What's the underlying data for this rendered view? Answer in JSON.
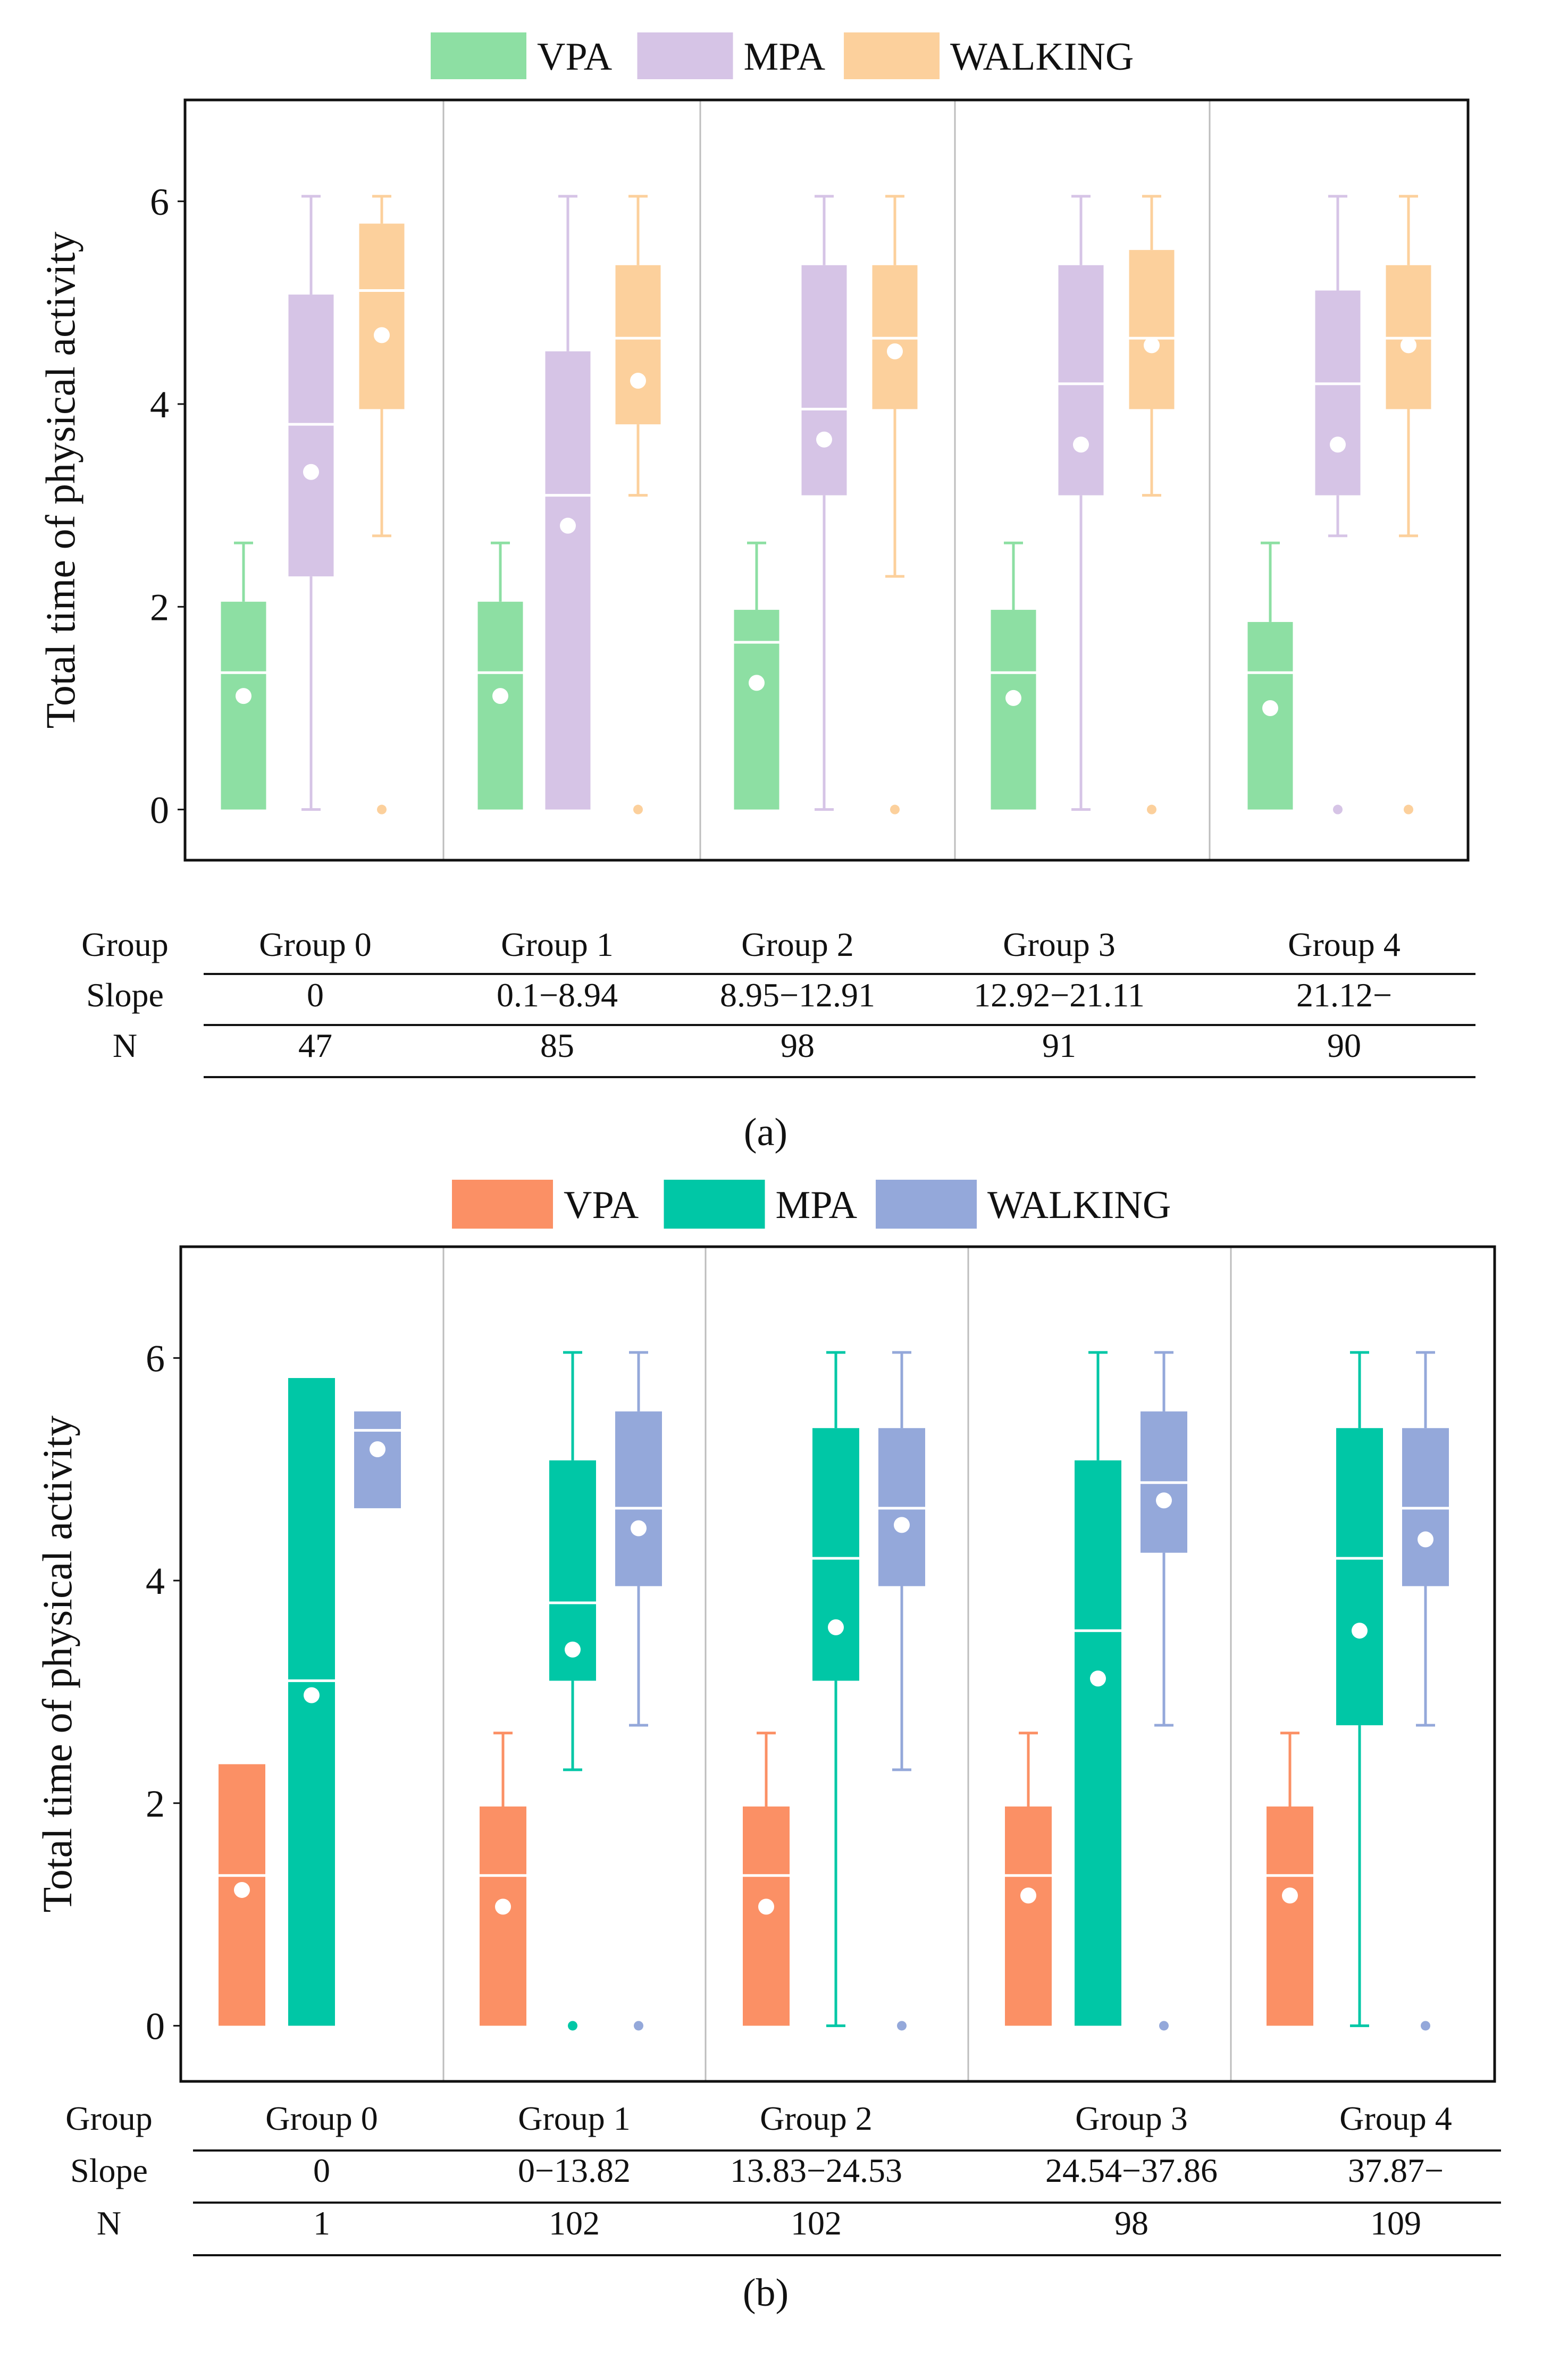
{
  "colors": {
    "a_vpa": "#8ddfa3",
    "a_mpa": "#d6c4e6",
    "a_walking": "#fcd09c",
    "b_vpa": "#fb9065",
    "b_mpa": "#00c7a6",
    "b_walking": "#94a8da",
    "median_line": "#ffffff",
    "mean_dot": "#ffffff",
    "frame": "#111111",
    "separator": "#bdbdbd"
  },
  "chart_data": [
    {
      "id": "a",
      "panel_label": "(a)",
      "type": "boxplot",
      "ylabel": "Total time of  physical activity",
      "ylim": [
        -0.5,
        7
      ],
      "yticks": [
        "0",
        "2",
        "4",
        "6"
      ],
      "legend": {
        "placement": "top-center",
        "entries": [
          {
            "label": "VPA",
            "color_key": "a_vpa"
          },
          {
            "label": "MPA",
            "color_key": "a_mpa"
          },
          {
            "label": "WALKING",
            "color_key": "a_walking"
          }
        ]
      },
      "groups": [
        "Group 0",
        "Group 1",
        "Group 2",
        "Group 3",
        "Group 4"
      ],
      "series": [
        {
          "name": "VPA",
          "color_key": "a_vpa",
          "boxes": [
            {
              "min": 0,
              "q1": 0,
              "median": 1.35,
              "q3": 2.05,
              "max": 2.63,
              "mean": 1.12,
              "outliers": []
            },
            {
              "min": 0,
              "q1": 0,
              "median": 1.35,
              "q3": 2.05,
              "max": 2.63,
              "mean": 1.12,
              "outliers": []
            },
            {
              "min": 0,
              "q1": 0,
              "median": 1.65,
              "q3": 1.97,
              "max": 2.63,
              "mean": 1.25,
              "outliers": []
            },
            {
              "min": 0,
              "q1": 0,
              "median": 1.35,
              "q3": 1.97,
              "max": 2.63,
              "mean": 1.1,
              "outliers": []
            },
            {
              "min": 0,
              "q1": 0,
              "median": 1.35,
              "q3": 1.85,
              "max": 2.63,
              "mean": 1.0,
              "outliers": []
            }
          ]
        },
        {
          "name": "MPA",
          "color_key": "a_mpa",
          "boxes": [
            {
              "min": 0,
              "q1": 2.3,
              "median": 3.8,
              "q3": 5.08,
              "max": 6.05,
              "mean": 3.33,
              "outliers": []
            },
            {
              "min": 0,
              "q1": 0,
              "median": 3.1,
              "q3": 4.52,
              "max": 6.05,
              "mean": 2.8,
              "outliers": []
            },
            {
              "min": 0,
              "q1": 3.1,
              "median": 3.95,
              "q3": 5.37,
              "max": 6.05,
              "mean": 3.65,
              "outliers": []
            },
            {
              "min": 0,
              "q1": 3.1,
              "median": 4.2,
              "q3": 5.37,
              "max": 6.05,
              "mean": 3.6,
              "outliers": []
            },
            {
              "min": 2.7,
              "q1": 3.1,
              "median": 4.2,
              "q3": 5.12,
              "max": 6.05,
              "mean": 3.6,
              "outliers": [
                0
              ]
            }
          ]
        },
        {
          "name": "WALKING",
          "color_key": "a_walking",
          "boxes": [
            {
              "min": 2.7,
              "q1": 3.95,
              "median": 5.12,
              "q3": 5.78,
              "max": 6.05,
              "mean": 4.68,
              "outliers": [
                0
              ]
            },
            {
              "min": 3.1,
              "q1": 3.8,
              "median": 4.65,
              "q3": 5.37,
              "max": 6.05,
              "mean": 4.23,
              "outliers": [
                0
              ]
            },
            {
              "min": 2.3,
              "q1": 3.95,
              "median": 4.65,
              "q3": 5.37,
              "max": 6.05,
              "mean": 4.52,
              "outliers": [
                0
              ]
            },
            {
              "min": 3.1,
              "q1": 3.95,
              "median": 4.65,
              "q3": 5.52,
              "max": 6.05,
              "mean": 4.58,
              "outliers": [
                0
              ]
            },
            {
              "min": 2.7,
              "q1": 3.95,
              "median": 4.65,
              "q3": 5.37,
              "max": 6.05,
              "mean": 4.58,
              "outliers": [
                0
              ]
            }
          ]
        }
      ],
      "table": {
        "row_labels": [
          "Group",
          "Slope",
          "N"
        ],
        "groups": [
          "Group 0",
          "Group 1",
          "Group 2",
          "Group 3",
          "Group 4"
        ],
        "slopes": [
          "0",
          "0.1−8.94",
          "8.95−12.91",
          "12.92−21.11",
          "21.12−"
        ],
        "n": [
          "47",
          "85",
          "98",
          "91",
          "90"
        ]
      }
    },
    {
      "id": "b",
      "panel_label": "(b)",
      "type": "boxplot",
      "ylabel": "Total time of  physical activity",
      "ylim": [
        -0.5,
        7
      ],
      "yticks": [
        "0",
        "2",
        "4",
        "6"
      ],
      "legend": {
        "placement": "top-center",
        "entries": [
          {
            "label": "VPA",
            "color_key": "b_vpa"
          },
          {
            "label": "MPA",
            "color_key": "b_mpa"
          },
          {
            "label": "WALKING",
            "color_key": "b_walking"
          }
        ]
      },
      "groups": [
        "Group 0",
        "Group 1",
        "Group 2",
        "Group 3",
        "Group 4"
      ],
      "series": [
        {
          "name": "VPA",
          "color_key": "b_vpa",
          "boxes": [
            {
              "min": 0,
              "q1": 0,
              "median": 1.35,
              "q3": 2.35,
              "max": 2.35,
              "mean": 1.22,
              "outliers": []
            },
            {
              "min": 0,
              "q1": 0,
              "median": 1.35,
              "q3": 1.97,
              "max": 2.63,
              "mean": 1.07,
              "outliers": []
            },
            {
              "min": 0,
              "q1": 0,
              "median": 1.35,
              "q3": 1.97,
              "max": 2.63,
              "mean": 1.07,
              "outliers": []
            },
            {
              "min": 0,
              "q1": 0,
              "median": 1.35,
              "q3": 1.97,
              "max": 2.63,
              "mean": 1.17,
              "outliers": []
            },
            {
              "min": 0,
              "q1": 0,
              "median": 1.35,
              "q3": 1.97,
              "max": 2.63,
              "mean": 1.17,
              "outliers": []
            }
          ]
        },
        {
          "name": "MPA",
          "color_key": "b_mpa",
          "boxes": [
            {
              "min": 0,
              "q1": 0,
              "median": 3.1,
              "q3": 5.82,
              "max": 5.82,
              "mean": 2.97,
              "outliers": []
            },
            {
              "min": 2.3,
              "q1": 3.1,
              "median": 3.8,
              "q3": 5.08,
              "max": 6.05,
              "mean": 3.38,
              "outliers": [
                0
              ]
            },
            {
              "min": 0,
              "q1": 3.1,
              "median": 4.2,
              "q3": 5.37,
              "max": 6.05,
              "mean": 3.58,
              "outliers": []
            },
            {
              "min": 0,
              "q1": 0,
              "median": 3.55,
              "q3": 5.08,
              "max": 6.05,
              "mean": 3.12,
              "outliers": []
            },
            {
              "min": 0,
              "q1": 2.7,
              "median": 4.2,
              "q3": 5.37,
              "max": 6.05,
              "mean": 3.55,
              "outliers": []
            }
          ]
        },
        {
          "name": "WALKING",
          "color_key": "b_walking",
          "boxes": [
            {
              "min": 4.65,
              "q1": 4.65,
              "median": 5.35,
              "q3": 5.52,
              "max": 5.52,
              "mean": 5.18,
              "outliers": []
            },
            {
              "min": 2.7,
              "q1": 3.95,
              "median": 4.65,
              "q3": 5.52,
              "max": 6.05,
              "mean": 4.47,
              "outliers": [
                0
              ]
            },
            {
              "min": 2.3,
              "q1": 3.95,
              "median": 4.65,
              "q3": 5.37,
              "max": 6.05,
              "mean": 4.5,
              "outliers": [
                0
              ]
            },
            {
              "min": 2.7,
              "q1": 4.25,
              "median": 4.88,
              "q3": 5.52,
              "max": 6.05,
              "mean": 4.72,
              "outliers": [
                0
              ]
            },
            {
              "min": 2.7,
              "q1": 3.95,
              "median": 4.65,
              "q3": 5.37,
              "max": 6.05,
              "mean": 4.37,
              "outliers": [
                0
              ]
            }
          ]
        }
      ],
      "table": {
        "row_labels": [
          "Group",
          "Slope",
          "N"
        ],
        "groups": [
          "Group 0",
          "Group 1",
          "Group 2",
          "Group 3",
          "Group 4"
        ],
        "slopes": [
          "0",
          "0−13.82",
          "13.83−24.53",
          "24.54−37.86",
          "37.87−"
        ],
        "n": [
          "1",
          "102",
          "102",
          "98",
          "109"
        ]
      }
    }
  ]
}
